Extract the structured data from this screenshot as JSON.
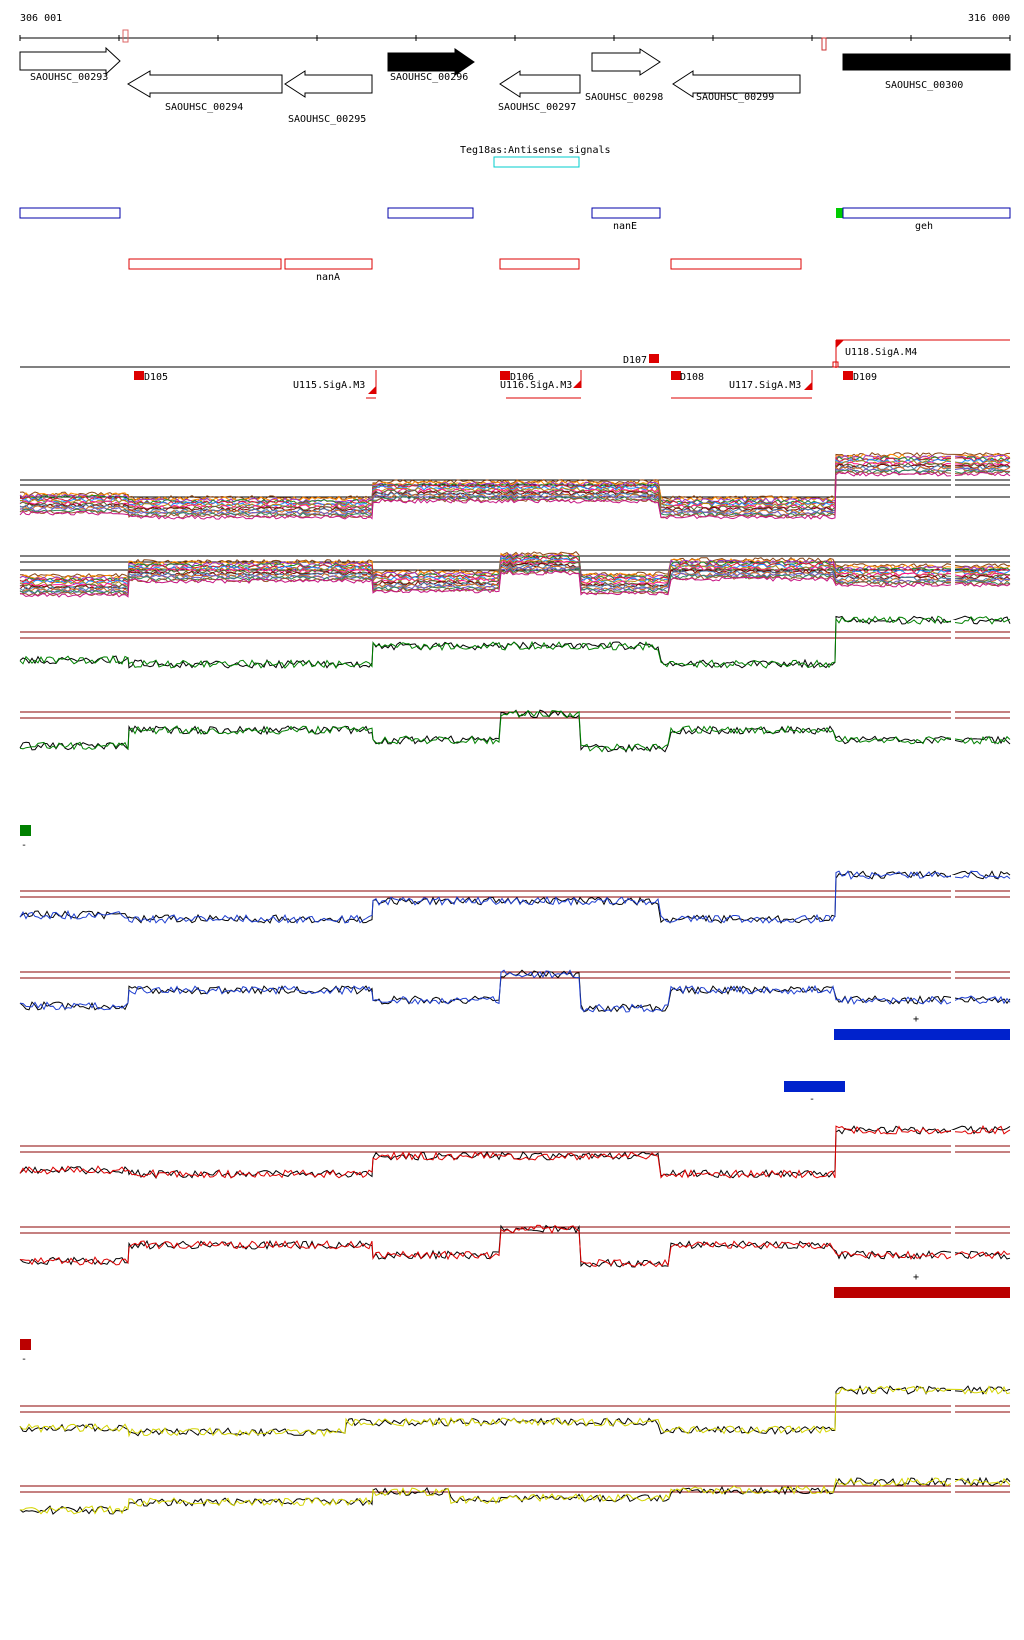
{
  "ruler": {
    "start_label": "306 001",
    "end_label": "316 000"
  },
  "colors": {
    "blue_box": "#0000aa",
    "red_box": "#dd0000",
    "cyan_box": "#00cccc",
    "green_marker": "#00cc00",
    "dark_red_line": "#8b0000",
    "green_series": "#008000",
    "blue_series": "#1f3fd0",
    "red_series": "#dd0000",
    "yellow_series": "#d4d400",
    "blue_bar": "#0022cc",
    "red_bar": "#bb0000",
    "green_legend": "#008000"
  },
  "genes": [
    {
      "name": "SAOUHSC_00293",
      "strand": "+",
      "filled": false
    },
    {
      "name": "SAOUHSC_00294",
      "strand": "-",
      "filled": false
    },
    {
      "name": "SAOUHSC_00295",
      "strand": "-",
      "filled": false
    },
    {
      "name": "SAOUHSC_00296",
      "strand": "+",
      "filled": true
    },
    {
      "name": "SAOUHSC_00297",
      "strand": "-",
      "filled": false
    },
    {
      "name": "SAOUHSC_00298",
      "strand": "+",
      "filled": false
    },
    {
      "name": "SAOUHSC_00299",
      "strand": "-",
      "filled": false
    },
    {
      "name": "SAOUHSC_00300",
      "strand": "+",
      "filled": true
    }
  ],
  "antisense_label": "Teg18as:Antisense signals",
  "plus_features": [
    {
      "label": ""
    },
    {
      "label": ""
    },
    {
      "label": "nanE"
    },
    {
      "label": "geh"
    }
  ],
  "minus_features": [
    {
      "label": ""
    },
    {
      "label": "nanA"
    },
    {
      "label": ""
    },
    {
      "label": ""
    }
  ],
  "promoters": {
    "labels_below": [
      "D105",
      "D106",
      "D108",
      "D109"
    ],
    "label_above": "D107",
    "siga": [
      "U115.SigA.M3",
      "U116.SigA.M3",
      "U117.SigA.M3",
      "U118.SigA.M4"
    ]
  },
  "legend_marks": [
    "-",
    "-",
    "+",
    "-",
    "+",
    "-"
  ]
}
